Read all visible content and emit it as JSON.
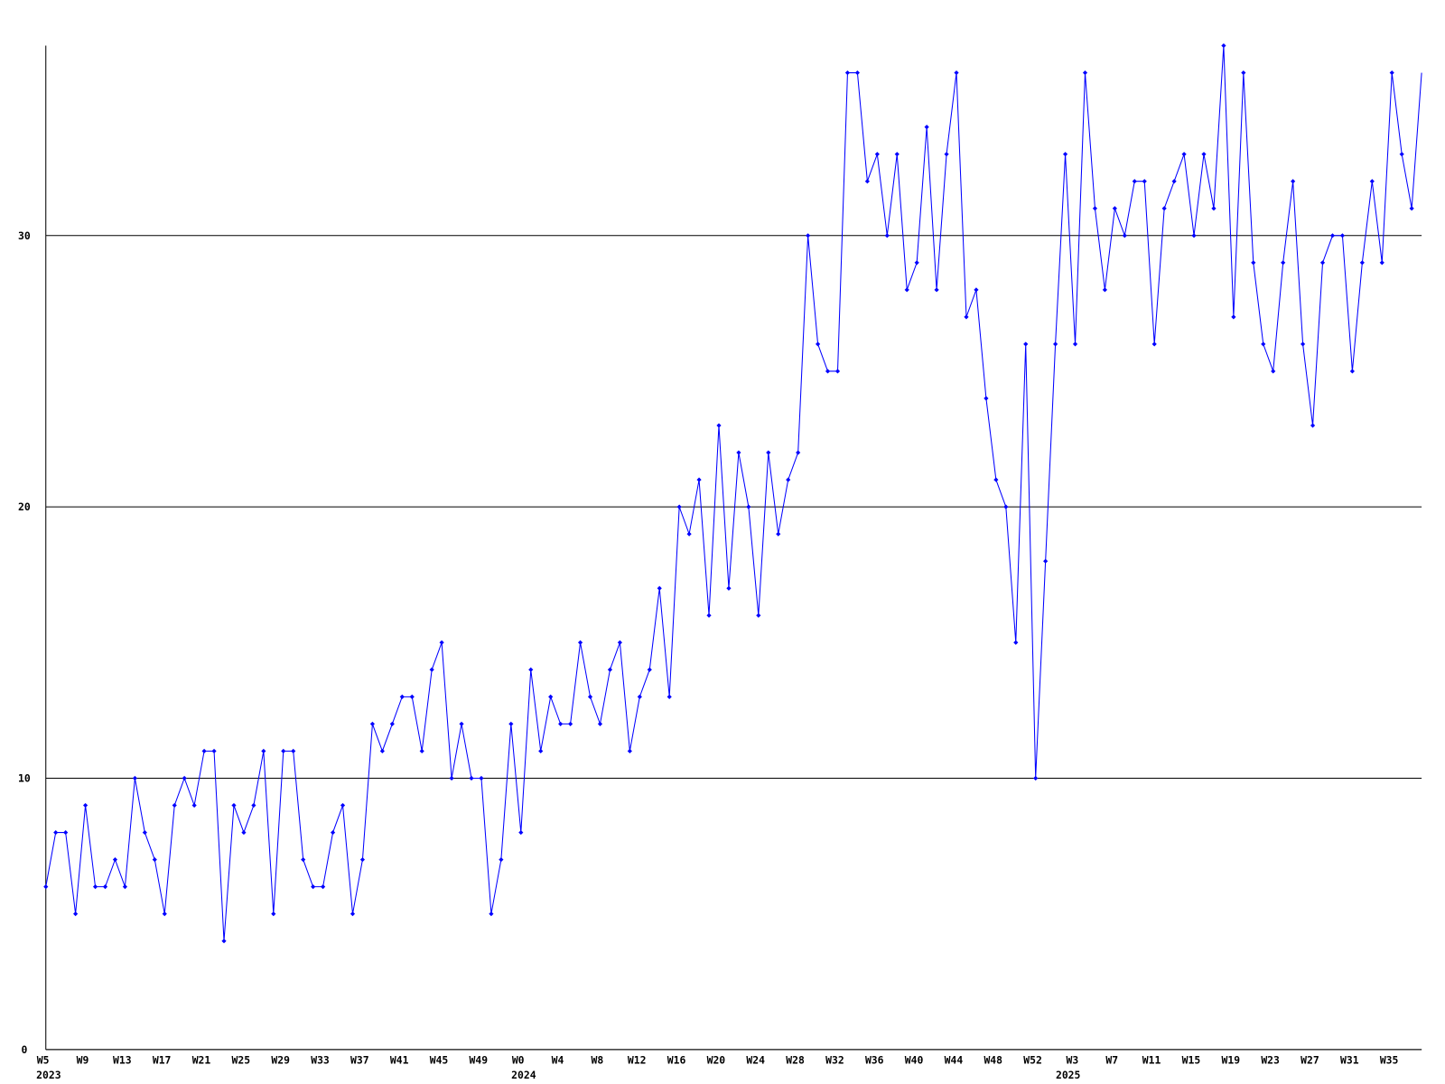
{
  "chart_data": {
    "type": "line",
    "categories": [
      "W5",
      null,
      null,
      null,
      "W9",
      null,
      null,
      null,
      "W13",
      null,
      null,
      null,
      "W17",
      null,
      null,
      null,
      "W21",
      null,
      null,
      null,
      "W25",
      null,
      null,
      null,
      "W29",
      null,
      null,
      null,
      "W33",
      null,
      null,
      null,
      "W37",
      null,
      null,
      null,
      "W41",
      null,
      null,
      null,
      "W45",
      null,
      null,
      null,
      "W49",
      null,
      null,
      null,
      "W0",
      null,
      null,
      null,
      "W4",
      null,
      null,
      null,
      "W8",
      null,
      null,
      null,
      "W12",
      null,
      null,
      null,
      "W16",
      null,
      null,
      null,
      "W20",
      null,
      null,
      null,
      "W24",
      null,
      null,
      null,
      "W28",
      null,
      null,
      null,
      "W32",
      null,
      null,
      null,
      "W36",
      null,
      null,
      null,
      "W40",
      null,
      null,
      null,
      "W44",
      null,
      null,
      null,
      "W48",
      null,
      null,
      null,
      "W52",
      null,
      null,
      null,
      "W3",
      null,
      null,
      null,
      "W7",
      null,
      null,
      null,
      "W11",
      null,
      null,
      null,
      "W15",
      null,
      null,
      null,
      "W19",
      null,
      null,
      null,
      "W23",
      null,
      null,
      null,
      "W27",
      null,
      null,
      null,
      "W31",
      null,
      null,
      null,
      "W35",
      null,
      null,
      null
    ],
    "years": [
      "2023",
      null,
      null,
      null,
      null,
      null,
      null,
      null,
      null,
      null,
      null,
      null,
      null,
      null,
      null,
      null,
      null,
      null,
      null,
      null,
      null,
      null,
      null,
      null,
      null,
      null,
      null,
      null,
      null,
      null,
      null,
      null,
      null,
      null,
      null,
      null,
      null,
      null,
      null,
      null,
      null,
      null,
      null,
      null,
      null,
      null,
      null,
      null,
      "2024",
      null,
      null,
      null,
      null,
      null,
      null,
      null,
      null,
      null,
      null,
      null,
      null,
      null,
      null,
      null,
      null,
      null,
      null,
      null,
      null,
      null,
      null,
      null,
      null,
      null,
      null,
      null,
      null,
      null,
      null,
      null,
      null,
      null,
      null,
      null,
      null,
      null,
      null,
      null,
      null,
      null,
      null,
      null,
      null,
      null,
      null,
      null,
      null,
      null,
      null,
      null,
      null,
      null,
      null,
      "2025",
      null,
      null,
      null,
      null,
      null,
      null,
      null,
      null,
      null,
      null,
      null,
      null,
      null,
      null,
      null,
      null,
      null,
      null,
      null,
      null,
      null,
      null,
      null,
      null,
      null,
      null,
      null,
      null,
      null,
      null,
      null,
      null,
      null,
      null,
      null,
      null,
      null,
      null
    ],
    "series": [
      {
        "color": "#0000ff",
        "values": [
          6,
          8,
          8,
          5,
          9,
          6,
          6,
          7,
          6,
          10,
          8,
          7,
          5,
          9,
          10,
          9,
          11,
          11,
          4,
          9,
          8,
          9,
          11,
          5,
          11,
          11,
          7,
          6,
          6,
          8,
          9,
          5,
          7,
          12,
          11,
          12,
          13,
          13,
          11,
          14,
          15,
          10,
          12,
          10,
          10,
          5,
          7,
          12,
          8,
          14,
          11,
          13,
          12,
          12,
          15,
          13,
          12,
          14,
          15,
          11,
          13,
          14,
          17,
          13,
          20,
          19,
          21,
          16,
          23,
          17,
          22,
          20,
          16,
          22,
          19,
          21,
          22,
          30,
          26,
          25,
          25,
          36,
          36,
          32,
          33,
          30,
          33,
          28,
          29,
          34,
          28,
          33,
          36,
          27,
          28,
          24,
          21,
          20,
          15,
          26,
          10,
          18,
          26,
          33,
          26,
          36,
          31,
          28,
          31,
          30,
          32,
          32,
          26,
          31,
          32,
          33,
          30,
          33,
          31,
          37,
          27,
          36,
          29,
          26,
          25,
          29,
          32,
          26,
          23,
          29,
          30,
          30,
          25,
          29,
          32,
          29,
          36,
          33,
          31,
          36
        ]
      }
    ],
    "ylim": [
      0,
      37
    ],
    "yticks": [
      0,
      10,
      20,
      30
    ],
    "grid": true
  }
}
